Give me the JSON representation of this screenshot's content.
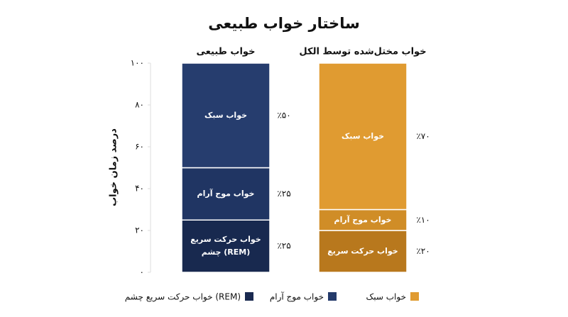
{
  "chart_data": {
    "type": "stacked_bar",
    "title": "ساختار خواب طبیعی",
    "y_label": "درصد زمان خواب",
    "categories": [
      "خواب طبیعی",
      "خواب مختل‌شده توسط الکل"
    ],
    "ylim": [
      0,
      100
    ],
    "yticks": [
      {
        "value": 0,
        "label": "۰"
      },
      {
        "value": 20,
        "label": "۲۰"
      },
      {
        "value": 40,
        "label": "۴۰"
      },
      {
        "value": 60,
        "label": "۶۰"
      },
      {
        "value": 80,
        "label": "۸۰"
      },
      {
        "value": 100,
        "label": "۱۰۰"
      }
    ],
    "series": [
      {
        "name": "خواب حرکت سریع چشم (REM)",
        "color": "#1a2a50",
        "colors": [
          "#18294f",
          "#b8781d"
        ],
        "values": [
          25,
          20
        ],
        "value_labels": [
          "٪۲۵",
          "٪۲۰"
        ],
        "segment_labels": [
          [
            "خواب حرکت سریع",
            "چشم (REM)"
          ],
          [
            "خواب حرکت سریع"
          ]
        ]
      },
      {
        "name": "خواب موج آرام",
        "color": "#243a6a",
        "colors": [
          "#203563",
          "#d08d27"
        ],
        "values": [
          25,
          10
        ],
        "value_labels": [
          "٪۲۵",
          "٪۱۰"
        ],
        "segment_labels": [
          [
            "خواب موج آرام"
          ],
          [
            "خواب موج آرام"
          ]
        ]
      },
      {
        "name": "خواب سبک",
        "color": "#e09b31",
        "colors": [
          "#263d6e",
          "#e09b31"
        ],
        "values": [
          50,
          70
        ],
        "value_labels": [
          "٪۵۰",
          "٪۷۰"
        ],
        "segment_labels": [
          [
            "خواب سبک"
          ],
          [
            "خواب سبک"
          ]
        ]
      }
    ]
  }
}
